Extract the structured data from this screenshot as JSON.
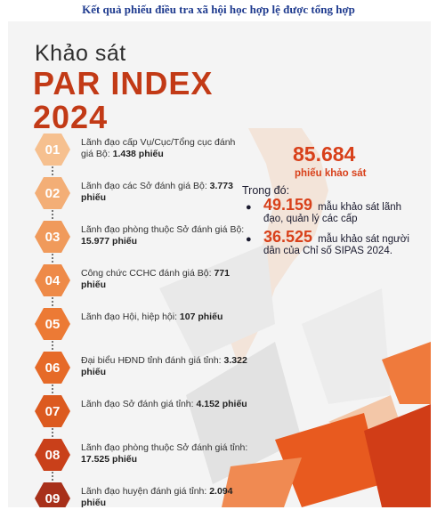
{
  "caption": "Kết quả phiếu điều tra xã hội học hợp lệ được tổng hợp",
  "title": {
    "line1": "Khảo sát",
    "line2": "PAR INDEX",
    "line3": "2024"
  },
  "items": [
    {
      "num": "01",
      "text": "Lãnh đạo cấp Vụ/Cục/Tổng cục đánh giá Bộ: ",
      "value": "1.438 phiếu",
      "color": "#f6c08f"
    },
    {
      "num": "02",
      "text": "Lãnh đạo các Sở đánh giá Bộ: ",
      "value": "3.773 phiếu",
      "color": "#f3ae76"
    },
    {
      "num": "03",
      "text": "Lãnh đạo phòng thuộc Sở đánh giá Bộ: ",
      "value": "15.977 phiếu",
      "color": "#f09a5b"
    },
    {
      "num": "04",
      "text": "Công chức CCHC đánh giá Bộ: ",
      "value": "771 phiếu",
      "color": "#ee8a48"
    },
    {
      "num": "05",
      "text": "Lãnh đạo Hội, hiệp hội: ",
      "value": "107 phiếu",
      "color": "#ec7a35"
    },
    {
      "num": "06",
      "text": "Đại biểu HĐND tỉnh đánh giá tỉnh: ",
      "value": "3.322 phiếu",
      "color": "#e66a28"
    },
    {
      "num": "07",
      "text": "Lãnh đạo Sở đánh giá tỉnh: ",
      "value": "4.152 phiếu",
      "color": "#dc5a1f"
    },
    {
      "num": "08",
      "text": "Lãnh đạo phòng thuộc Sở đánh giá tỉnh: ",
      "value": "17.525 phiếu",
      "color": "#c9401a"
    },
    {
      "num": "09",
      "text": "Lãnh đạo huyện đánh giá tỉnh: ",
      "value": "2.094 phiếu",
      "color": "#a8301a"
    }
  ],
  "summary": {
    "total": "85.684",
    "total_label": "phiếu khảo sát",
    "intro": "Trong đó:",
    "bullets": [
      {
        "num": "49.159",
        "text": "mẫu khảo sát lãnh đạo, quản lý các cấp"
      },
      {
        "num": "36.525",
        "text": "mẫu khảo sát người dân của Chỉ số SIPAS 2024."
      }
    ]
  }
}
